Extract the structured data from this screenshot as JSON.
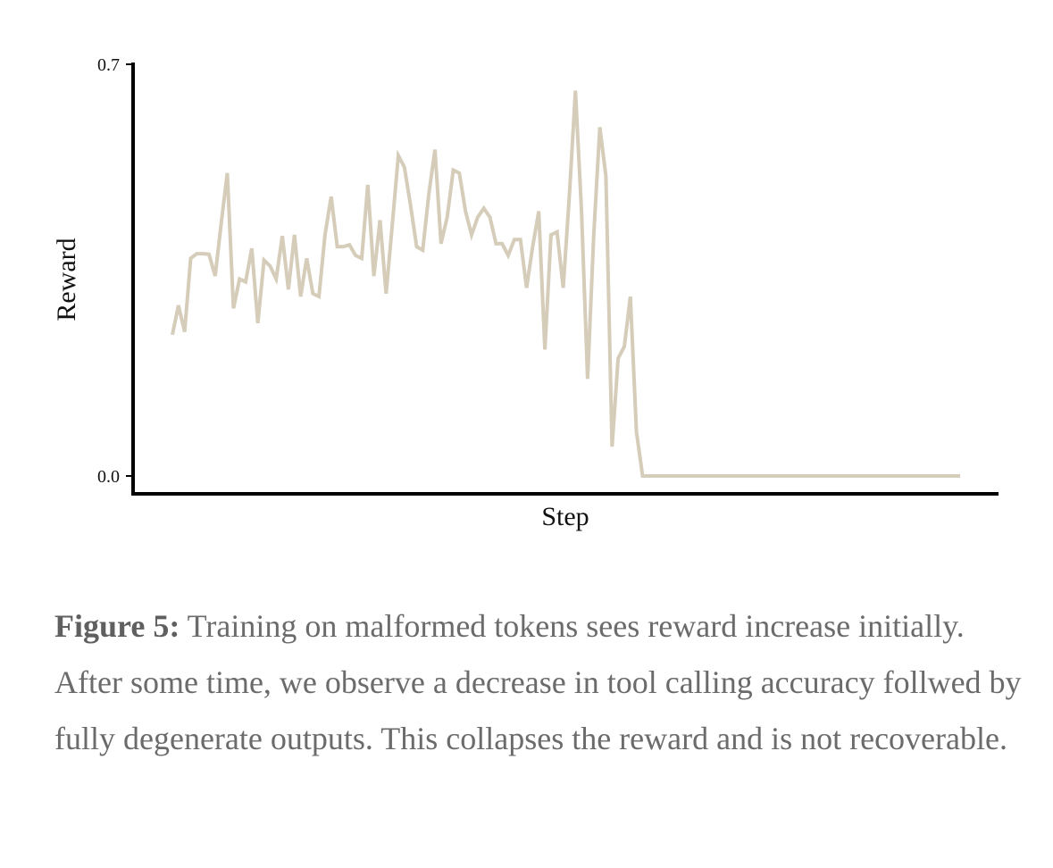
{
  "chart_data": {
    "type": "line",
    "title": "",
    "xlabel": "Step",
    "ylabel": "Reward",
    "ylim": [
      0.0,
      0.7
    ],
    "yticks": [
      "0.7",
      "0.0"
    ],
    "grid": false,
    "legend": "none",
    "series": [
      {
        "color": "#d5ccb9",
        "values": [
          0.24,
          0.29,
          0.245,
          0.37,
          0.378,
          0.378,
          0.377,
          0.34,
          0.43,
          0.515,
          0.285,
          0.335,
          0.33,
          0.387,
          0.26,
          0.367,
          0.357,
          0.335,
          0.408,
          0.317,
          0.41,
          0.305,
          0.37,
          0.31,
          0.305,
          0.41,
          0.475,
          0.39,
          0.39,
          0.393,
          0.375,
          0.37,
          0.495,
          0.34,
          0.435,
          0.31,
          0.425,
          0.545,
          0.525,
          0.46,
          0.39,
          0.384,
          0.48,
          0.555,
          0.395,
          0.44,
          0.52,
          0.515,
          0.45,
          0.41,
          0.44,
          0.455,
          0.44,
          0.395,
          0.395,
          0.375,
          0.402,
          0.402,
          0.32,
          0.39,
          0.45,
          0.215,
          0.41,
          0.415,
          0.32,
          0.475,
          0.655,
          0.45,
          0.165,
          0.41,
          0.593,
          0.51,
          0.05,
          0.2,
          0.22,
          0.305,
          0.075,
          0.0,
          0.0,
          0.0,
          0.0,
          0.0,
          0.0,
          0.0,
          0.0,
          0.0,
          0.0,
          0.0,
          0.0,
          0.0,
          0.0,
          0.0,
          0.0,
          0.0,
          0.0,
          0.0,
          0.0,
          0.0,
          0.0,
          0.0,
          0.0,
          0.0,
          0.0,
          0.0,
          0.0,
          0.0,
          0.0,
          0.0,
          0.0,
          0.0,
          0.0,
          0.0,
          0.0,
          0.0,
          0.0,
          0.0,
          0.0,
          0.0,
          0.0,
          0.0,
          0.0,
          0.0,
          0.0,
          0.0,
          0.0,
          0.0,
          0.0,
          0.0,
          0.0,
          0.0
        ]
      }
    ]
  },
  "caption": {
    "label": "Figure 5:",
    "text": " Training on malformed tokens sees reward increase initially. After some time, we observe a decrease in tool calling accuracy follwed by fully degenerate outputs. This collapses the reward and is not recoverable."
  }
}
